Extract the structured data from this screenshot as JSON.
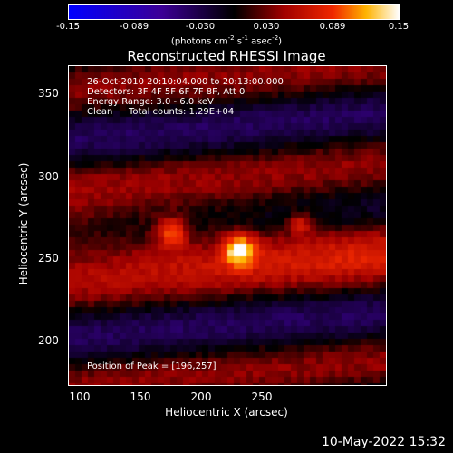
{
  "colorbar": {
    "ticks": [
      "-0.15",
      "-0.089",
      "-0.030",
      "0.030",
      "0.089",
      "0.15"
    ],
    "units_text": "(photons cm",
    "units_exp1": "-2",
    "units_text2": " s",
    "units_exp2": "-1",
    "units_text3": " asec",
    "units_exp3": "-2",
    "units_close": ")"
  },
  "title": "Reconstructed RHESSI Image",
  "info": {
    "time": "26-Oct-2010 20:10:04.000 to 20:13:00.000",
    "detectors": "Detectors: 3F 4F 5F 6F 7F 8F, Att 0",
    "energy": "Energy Range: 3.0 - 6.0 keV",
    "clean_label": "Clean",
    "counts": "Total counts: 1.29E+04"
  },
  "peak": "Position of Peak = [196,257]",
  "axes": {
    "x_ticks": [
      "100",
      "150",
      "200",
      "250"
    ],
    "y_ticks": [
      "350",
      "300",
      "250",
      "200"
    ],
    "xlabel": "Heliocentric X (arcsec)",
    "ylabel": "Heliocentric Y (arcsec)"
  },
  "footer_date": "10-May-2022 15:32"
}
